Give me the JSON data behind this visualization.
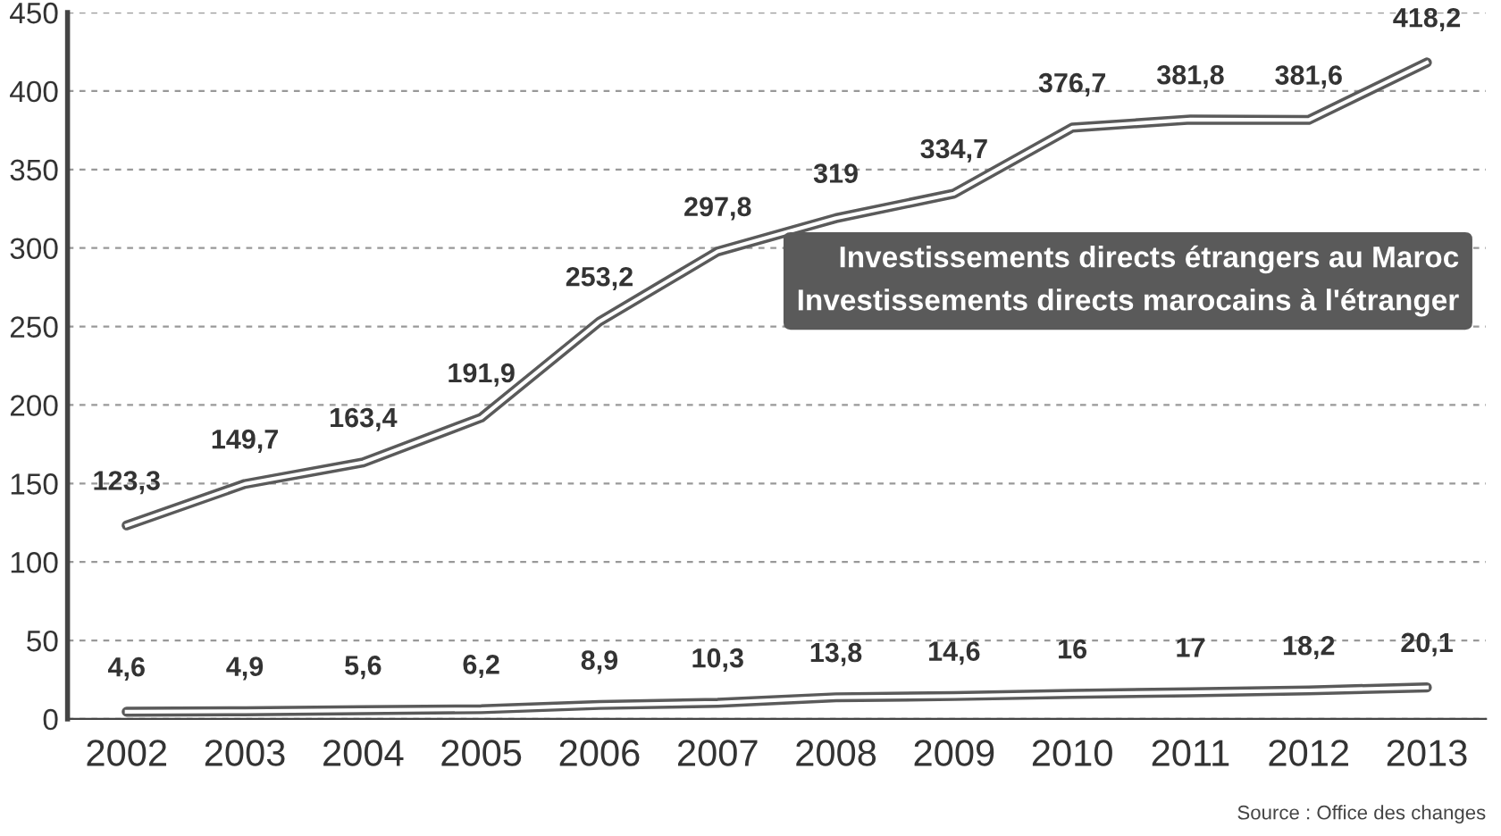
{
  "chart_data": {
    "type": "line",
    "categories": [
      "2002",
      "2003",
      "2004",
      "2005",
      "2006",
      "2007",
      "2008",
      "2009",
      "2010",
      "2011",
      "2012",
      "2013"
    ],
    "series": [
      {
        "name": "Investissements directs étrangers au Maroc",
        "color": "#5a5a5a",
        "values": [
          123.3,
          149.7,
          163.4,
          191.9,
          253.2,
          297.8,
          319,
          334.7,
          376.7,
          381.8,
          381.6,
          418.2
        ],
        "value_labels": [
          "123,3",
          "149,7",
          "163,4",
          "191,9",
          "253,2",
          "297,8",
          "319",
          "334,7",
          "376,7",
          "381,8",
          "381,6",
          "418,2"
        ]
      },
      {
        "name": "Investissements directs marocains à l'étranger",
        "color": "#5a5a5a",
        "values": [
          4.6,
          4.9,
          5.6,
          6.2,
          8.9,
          10.3,
          13.8,
          14.6,
          16,
          17,
          18.2,
          20.1
        ],
        "value_labels": [
          "4,6",
          "4,9",
          "5,6",
          "6,2",
          "8,9",
          "10,3",
          "13,8",
          "14,6",
          "16",
          "17",
          "18,2",
          "20,1"
        ]
      }
    ],
    "ylim": [
      0,
      450
    ],
    "yticks": [
      0,
      50,
      100,
      150,
      200,
      250,
      300,
      350,
      400,
      450
    ],
    "grid": "y",
    "legend": "right",
    "marker": "none",
    "line_style": "solid",
    "annotations": [
      "Source : Office des changes"
    ]
  }
}
